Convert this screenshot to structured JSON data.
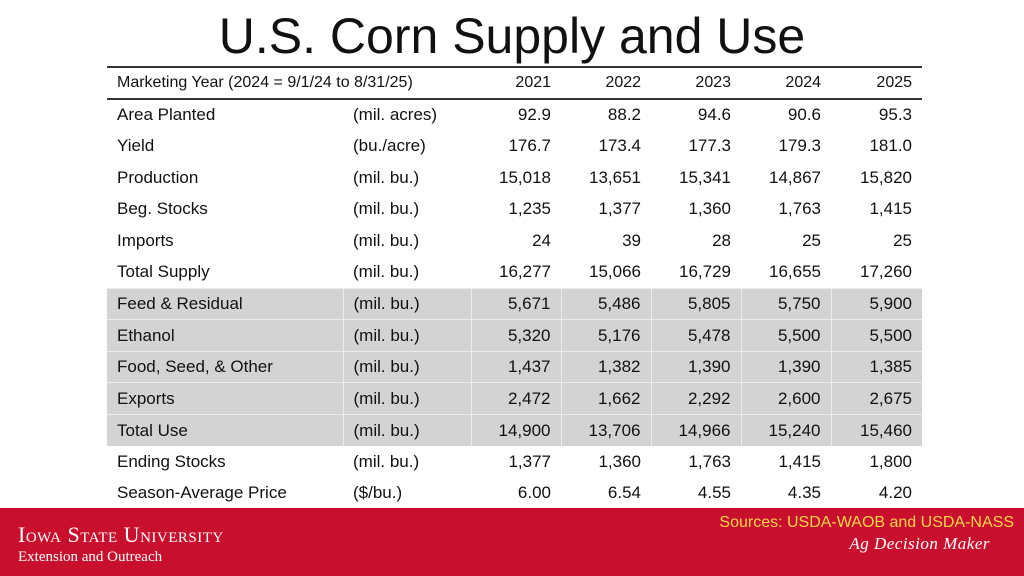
{
  "title": "U.S. Corn Supply and Use",
  "table": {
    "header": {
      "label": "Marketing Year (2024 = 9/1/24 to 8/31/25)",
      "years": [
        "2021",
        "2022",
        "2023",
        "2024",
        "2025"
      ]
    },
    "rows": [
      {
        "label": "Area Planted",
        "unit": "(mil. acres)",
        "values": [
          "92.9",
          "88.2",
          "94.6",
          "90.6",
          "95.3"
        ],
        "shaded": false
      },
      {
        "label": "Yield",
        "unit": "(bu./acre)",
        "values": [
          "176.7",
          "173.4",
          "177.3",
          "179.3",
          "181.0"
        ],
        "shaded": false
      },
      {
        "label": "Production",
        "unit": "(mil. bu.)",
        "values": [
          "15,018",
          "13,651",
          "15,341",
          "14,867",
          "15,820"
        ],
        "shaded": false
      },
      {
        "label": "Beg. Stocks",
        "unit": "(mil. bu.)",
        "values": [
          "1,235",
          "1,377",
          "1,360",
          "1,763",
          "1,415"
        ],
        "shaded": false
      },
      {
        "label": "Imports",
        "unit": "(mil. bu.)",
        "values": [
          "24",
          "39",
          "28",
          "25",
          "25"
        ],
        "shaded": false
      },
      {
        "label": "Total Supply",
        "unit": "(mil. bu.)",
        "values": [
          "16,277",
          "15,066",
          "16,729",
          "16,655",
          "17,260"
        ],
        "shaded": false
      },
      {
        "label": "Feed & Residual",
        "unit": "(mil. bu.)",
        "values": [
          "5,671",
          "5,486",
          "5,805",
          "5,750",
          "5,900"
        ],
        "shaded": true
      },
      {
        "label": "Ethanol",
        "unit": "(mil. bu.)",
        "values": [
          "5,320",
          "5,176",
          "5,478",
          "5,500",
          "5,500"
        ],
        "shaded": true
      },
      {
        "label": "Food, Seed, & Other",
        "unit": "(mil. bu.)",
        "values": [
          "1,437",
          "1,382",
          "1,390",
          "1,390",
          "1,385"
        ],
        "shaded": true
      },
      {
        "label": "Exports",
        "unit": "(mil. bu.)",
        "values": [
          "2,472",
          "1,662",
          "2,292",
          "2,600",
          "2,675"
        ],
        "shaded": true
      },
      {
        "label": "Total Use",
        "unit": "(mil. bu.)",
        "values": [
          "14,900",
          "13,706",
          "14,966",
          "15,240",
          "15,460"
        ],
        "shaded": true
      },
      {
        "label": "Ending Stocks",
        "unit": "(mil. bu.)",
        "values": [
          "1,377",
          "1,360",
          "1,763",
          "1,415",
          "1,800"
        ],
        "shaded": false
      },
      {
        "label": "Season-Average Price",
        "unit": "($/bu.)",
        "values": [
          "6.00",
          "6.54",
          "4.55",
          "4.35",
          "4.20"
        ],
        "shaded": false
      }
    ]
  },
  "footer": {
    "university": "Iowa State University",
    "unit": "Extension and Outreach",
    "sources": "Sources: USDA-WAOB and USDA-NASS",
    "brand": "Ag Decision Maker",
    "colors": {
      "band": "#c8102e",
      "sources_text": "#ffd54a",
      "shaded_rows": "#d3d3d3"
    }
  }
}
